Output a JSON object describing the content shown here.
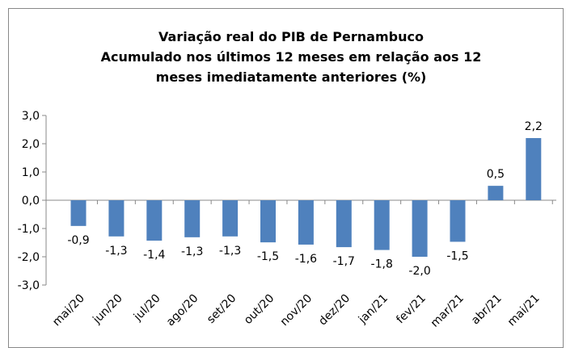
{
  "chart_data": {
    "type": "bar",
    "title": [
      "Variação real do PIB de Pernambuco",
      "Acumulado nos últimos 12 meses em relação aos 12",
      "meses imediatamente anteriores (%)"
    ],
    "categories": [
      "mai/20",
      "jun/20",
      "jul/20",
      "ago/20",
      "set/20",
      "out/20",
      "nov/20",
      "dez/20",
      "jan/21",
      "fev/21",
      "mar/21",
      "abr/21",
      "mai/21"
    ],
    "values": [
      -0.91,
      -1.28,
      -1.43,
      -1.31,
      -1.28,
      -1.49,
      -1.57,
      -1.66,
      -1.76,
      -2.0,
      -1.47,
      0.51,
      2.2
    ],
    "value_labels": [
      "-0,9",
      "-1,3",
      "-1,4",
      "-1,3",
      "-1,3",
      "-1,5",
      "-1,6",
      "-1,7",
      "-1,8",
      "-2,0",
      "-1,5",
      "0,5",
      "2,2"
    ],
    "color": "#4f81bd",
    "ylim": [
      -3,
      3
    ],
    "yticks": [
      {
        "value": -3,
        "label": "-3,0"
      },
      {
        "value": -2,
        "label": "-2,0"
      },
      {
        "value": -1,
        "label": "-1,0"
      },
      {
        "value": 0,
        "label": "0,0"
      },
      {
        "value": 1,
        "label": "1,0"
      },
      {
        "value": 2,
        "label": "2,0"
      },
      {
        "value": 3,
        "label": "3,0"
      }
    ],
    "grid": false
  }
}
